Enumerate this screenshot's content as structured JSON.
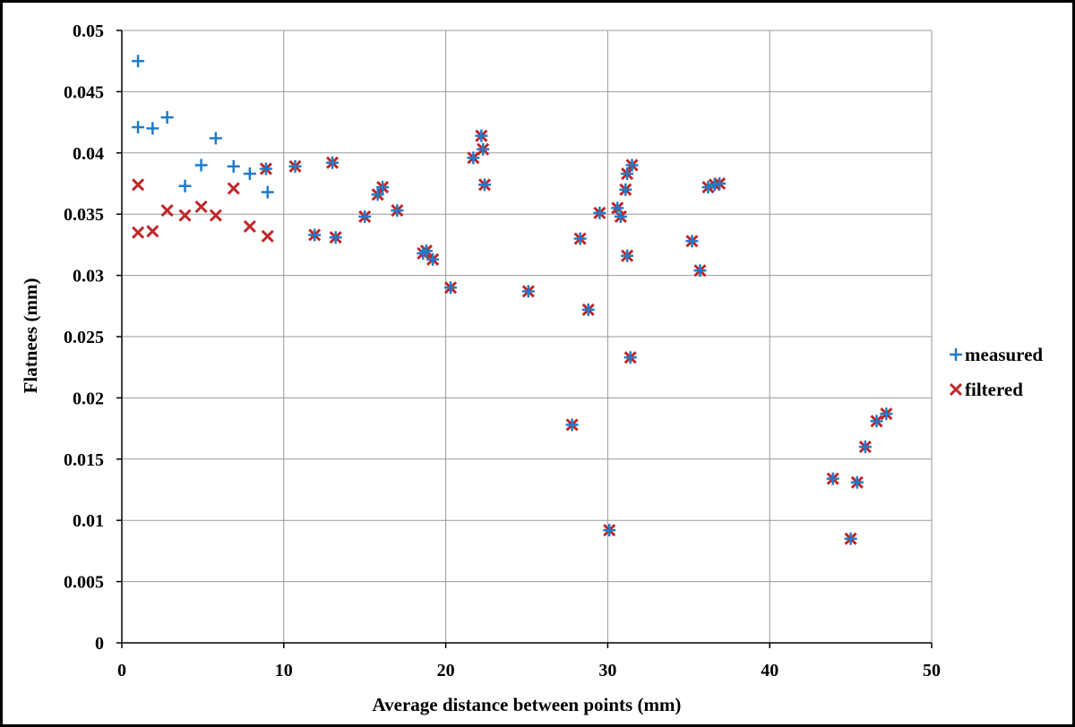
{
  "chart_data": {
    "type": "scatter",
    "title": "",
    "xlabel": "Average distance between points (mm)",
    "ylabel": "Flatnees  (mm)",
    "xlim": [
      0,
      50
    ],
    "ylim": [
      0,
      0.05
    ],
    "x_ticks": [
      "0",
      "10",
      "20",
      "30",
      "40",
      "50"
    ],
    "y_ticks": [
      "0",
      "0.005",
      "0.01",
      "0.015",
      "0.02",
      "0.025",
      "0.03",
      "0.035",
      "0.04",
      "0.045",
      "0.05"
    ],
    "grid": true,
    "legend_position": "right",
    "series": [
      {
        "name": "measured",
        "marker": "plus",
        "color": "#1f7bc8",
        "points": [
          [
            1.0,
            0.0475
          ],
          [
            1.0,
            0.0421
          ],
          [
            1.9,
            0.042
          ],
          [
            2.8,
            0.0429
          ],
          [
            3.9,
            0.0373
          ],
          [
            4.9,
            0.039
          ],
          [
            5.8,
            0.0412
          ],
          [
            6.9,
            0.0389
          ],
          [
            7.9,
            0.0383
          ],
          [
            9.0,
            0.0368
          ],
          [
            8.9,
            0.0387
          ],
          [
            10.7,
            0.0389
          ],
          [
            11.9,
            0.0333
          ],
          [
            13.0,
            0.0392
          ],
          [
            13.2,
            0.0331
          ],
          [
            15.0,
            0.0348
          ],
          [
            15.8,
            0.0366
          ],
          [
            16.1,
            0.0372
          ],
          [
            17.0,
            0.0353
          ],
          [
            18.6,
            0.0318
          ],
          [
            18.8,
            0.032
          ],
          [
            19.2,
            0.0313
          ],
          [
            20.3,
            0.029
          ],
          [
            21.7,
            0.0396
          ],
          [
            22.2,
            0.0414
          ],
          [
            22.3,
            0.0403
          ],
          [
            22.4,
            0.0374
          ],
          [
            25.1,
            0.0287
          ],
          [
            27.8,
            0.0178
          ],
          [
            28.3,
            0.033
          ],
          [
            28.8,
            0.0272
          ],
          [
            29.5,
            0.0351
          ],
          [
            30.1,
            0.0092
          ],
          [
            30.6,
            0.0355
          ],
          [
            30.8,
            0.0348
          ],
          [
            31.1,
            0.037
          ],
          [
            31.2,
            0.0383
          ],
          [
            31.2,
            0.0316
          ],
          [
            31.4,
            0.0233
          ],
          [
            31.5,
            0.039
          ],
          [
            35.2,
            0.0328
          ],
          [
            35.7,
            0.0304
          ],
          [
            36.2,
            0.0372
          ],
          [
            36.6,
            0.0374
          ],
          [
            36.9,
            0.0375
          ],
          [
            43.9,
            0.0134
          ],
          [
            45.0,
            0.0085
          ],
          [
            45.4,
            0.0131
          ],
          [
            45.9,
            0.016
          ],
          [
            46.6,
            0.0181
          ],
          [
            47.2,
            0.0187
          ]
        ]
      },
      {
        "name": "filtered",
        "marker": "x",
        "color": "#c0282a",
        "points": [
          [
            1.0,
            0.0374
          ],
          [
            1.0,
            0.0335
          ],
          [
            1.9,
            0.0336
          ],
          [
            2.8,
            0.0353
          ],
          [
            3.9,
            0.0349
          ],
          [
            4.9,
            0.0356
          ],
          [
            5.8,
            0.0349
          ],
          [
            6.9,
            0.0371
          ],
          [
            7.9,
            0.034
          ],
          [
            9.0,
            0.0332
          ],
          [
            8.9,
            0.0387
          ],
          [
            10.7,
            0.0389
          ],
          [
            11.9,
            0.0333
          ],
          [
            13.0,
            0.0392
          ],
          [
            13.2,
            0.0331
          ],
          [
            15.0,
            0.0348
          ],
          [
            15.8,
            0.0366
          ],
          [
            16.1,
            0.0372
          ],
          [
            17.0,
            0.0353
          ],
          [
            18.6,
            0.0318
          ],
          [
            18.8,
            0.032
          ],
          [
            19.2,
            0.0313
          ],
          [
            20.3,
            0.029
          ],
          [
            21.7,
            0.0396
          ],
          [
            22.2,
            0.0414
          ],
          [
            22.3,
            0.0403
          ],
          [
            22.4,
            0.0374
          ],
          [
            25.1,
            0.0287
          ],
          [
            27.8,
            0.0178
          ],
          [
            28.3,
            0.033
          ],
          [
            28.8,
            0.0272
          ],
          [
            29.5,
            0.0351
          ],
          [
            30.1,
            0.0092
          ],
          [
            30.6,
            0.0355
          ],
          [
            30.8,
            0.0348
          ],
          [
            31.1,
            0.037
          ],
          [
            31.2,
            0.0383
          ],
          [
            31.2,
            0.0316
          ],
          [
            31.4,
            0.0233
          ],
          [
            31.5,
            0.039
          ],
          [
            35.2,
            0.0328
          ],
          [
            35.7,
            0.0304
          ],
          [
            36.2,
            0.0372
          ],
          [
            36.6,
            0.0374
          ],
          [
            36.9,
            0.0375
          ],
          [
            43.9,
            0.0134
          ],
          [
            45.0,
            0.0085
          ],
          [
            45.4,
            0.0131
          ],
          [
            45.9,
            0.016
          ],
          [
            46.6,
            0.0181
          ],
          [
            47.2,
            0.0187
          ]
        ]
      }
    ]
  }
}
